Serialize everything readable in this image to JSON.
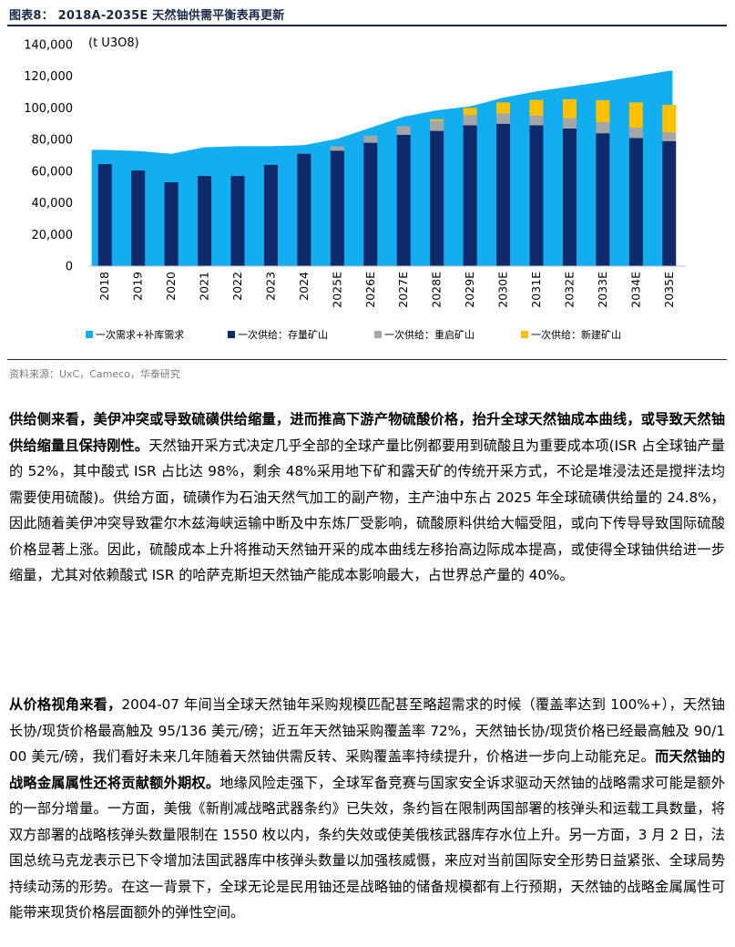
{
  "figure": {
    "title": "图表8：  2018A-2035E 天然铀供需平衡表再更新",
    "source": "资料来源：UxC，Cameco，华泰研究"
  },
  "colors": {
    "demand": "#12aef0",
    "existing": "#0e2a6b",
    "restart": "#a6a6a6",
    "new": "#ffc000",
    "title": "#1b2a4a"
  },
  "chart_data": {
    "type": "bar",
    "unit_label": "(t U3O8)",
    "categories": [
      "2018",
      "2019",
      "2020",
      "2021",
      "2022",
      "2023",
      "2024",
      "2025E",
      "2026E",
      "2027E",
      "2028E",
      "2029E",
      "2030E",
      "2031E",
      "2032E",
      "2033E",
      "2034E",
      "2035E"
    ],
    "ylim": [
      0,
      140000
    ],
    "yticks": [
      "0",
      "20,000",
      "40,000",
      "60,000",
      "80,000",
      "100,000",
      "120,000",
      "140,000"
    ],
    "demand_area": {
      "name": "一次需求+补库需求",
      "values": [
        73500,
        72800,
        71000,
        75200,
        75800,
        75800,
        76500,
        80500,
        87500,
        94500,
        98500,
        101000,
        106500,
        110500,
        113500,
        116500,
        120000,
        123500
      ]
    },
    "series": [
      {
        "name": "一次供给：存量矿山",
        "values": [
          64500,
          60500,
          53000,
          57000,
          57000,
          64000,
          71000,
          73000,
          78000,
          83000,
          85500,
          89000,
          90000,
          89000,
          87000,
          84000,
          81000,
          79000
        ]
      },
      {
        "name": "一次供给：重启矿山",
        "values": [
          0,
          0,
          0,
          0,
          0,
          0,
          0,
          2700,
          4500,
          5500,
          6300,
          6400,
          6500,
          6100,
          6500,
          6900,
          6500,
          5500
        ]
      },
      {
        "name": "一次供给：新建矿山",
        "values": [
          0,
          0,
          0,
          0,
          0,
          0,
          0,
          0,
          0,
          0,
          1000,
          4600,
          7000,
          10000,
          12000,
          14000,
          16000,
          17500
        ]
      }
    ],
    "legend_position": "bottom"
  },
  "paragraphs": [
    {
      "bold_lead": "供给侧来看，美伊冲突或导致硫磺供给缩量，进而推高下游产物硫酸价格，抬升全球天然铀成本曲线，或导致天然铀供给缩量且保持刚性。",
      "text": "天然铀开采方式决定几乎全部的全球产量比例都要用到硫酸且为重要成本项(ISR 占全球铀产量的 52%，其中酸式 ISR 占比达 98%，剩余 48%采用地下矿和露天矿的传统开采方式，不论是堆浸法还是搅拌法均需要使用硫酸)。供给方面，硫磺作为石油天然气加工的副产物，主产油中东占 2025 年全球硫磺供给量的 24.8%，因此随着美伊冲突导致霍尔木兹海峡运输中断及中东炼厂受影响，硫酸原料供给大幅受阻，或向下传导导致国际硫酸价格显著上涨。因此，硫酸成本上升将推动天然铀开采的成本曲线左移抬高边际成本提高，或使得全球铀供给进一步缩量，尤其对依赖酸式 ISR 的哈萨克斯坦天然铀产能成本影响最大，占世界总产量的 40%。"
    },
    {
      "bold_lead": "从价格视角来看，",
      "text": "2004-07 年间当全球天然铀年采购规模匹配甚至略超需求的时候（覆盖率达到 100%+），天然铀长协/现货价格最高触及 95/136 美元/磅；近五年天然铀采购覆盖率 72%，天然铀长协/现货价格已经最高触及 90/100 美元/磅，我们看好未来几年随着天然铀供需反转、采购覆盖率持续提升，价格进一步向上动能充足。",
      "bold_mid": "而天然铀的战略金属属性还将贡献额外期权。",
      "text2": "地缘风险走强下，全球军备竞赛与国家安全诉求驱动天然铀的战略需求可能是额外的一部分增量。一方面，美俄《新削减战略武器条约》已失效，条约旨在限制两国部署的核弹头和运载工具数量，将双方部署的战略核弹头数量限制在 1550 枚以内，条约失效或使美俄核武器库存水位上升。另一方面，3 月 2 日，法国总统马克龙表示已下令增加法国武器库中核弹头数量以加强核威慑，来应对当前国际安全形势日益紧张、全球局势持续动荡的形势。在这一背景下，全球无论是民用铀还是战略铀的储备规模都有上行预期，天然铀的战略金属属性可能带来现货价格层面额外的弹性空间。"
    }
  ]
}
